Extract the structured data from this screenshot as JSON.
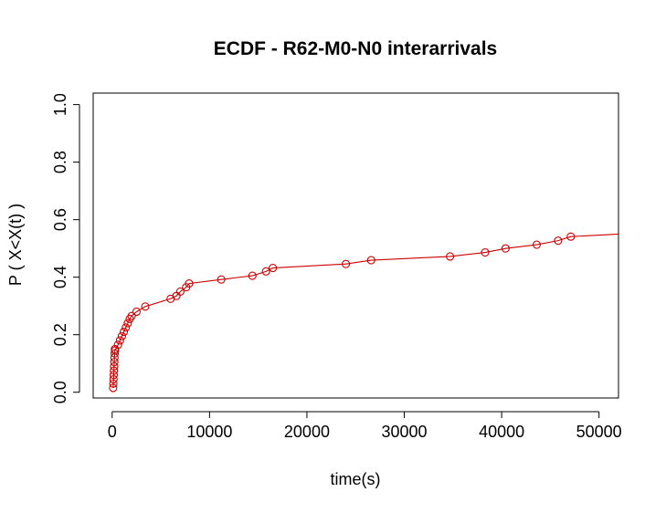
{
  "chart_data": {
    "type": "line",
    "title": "ECDF - R62-M0-N0 interarrivals",
    "xlabel": "time(s)",
    "ylabel": "P ( X<X(t) )",
    "xlim": [
      -1950,
      52000
    ],
    "ylim": [
      -0.02,
      1.04
    ],
    "xticks": [
      0,
      10000,
      20000,
      30000,
      40000,
      50000
    ],
    "yticks": [
      0.0,
      0.2,
      0.4,
      0.6,
      0.8,
      1.0
    ],
    "grid": false,
    "legend": "none",
    "series": [
      {
        "color": "#cc0000",
        "markers": "open-circle",
        "x": [
          100,
          120,
          140,
          160,
          180,
          200,
          220,
          240,
          260,
          280,
          300,
          600,
          800,
          1000,
          1200,
          1400,
          1600,
          1800,
          2000,
          2500,
          3400,
          6000,
          6600,
          7000,
          7600,
          7900,
          11200,
          14400,
          15800,
          16500,
          24000,
          26600,
          34700,
          38300,
          40400,
          43600,
          45800,
          47100,
          52000
        ],
        "y": [
          0.015,
          0.03,
          0.045,
          0.06,
          0.075,
          0.09,
          0.105,
          0.12,
          0.135,
          0.15,
          0.145,
          0.165,
          0.18,
          0.195,
          0.21,
          0.225,
          0.24,
          0.255,
          0.265,
          0.28,
          0.298,
          0.325,
          0.335,
          0.35,
          0.365,
          0.378,
          0.392,
          0.405,
          0.42,
          0.432,
          0.446,
          0.459,
          0.472,
          0.486,
          0.5,
          0.513,
          0.527,
          0.541,
          0.55
        ]
      }
    ]
  }
}
